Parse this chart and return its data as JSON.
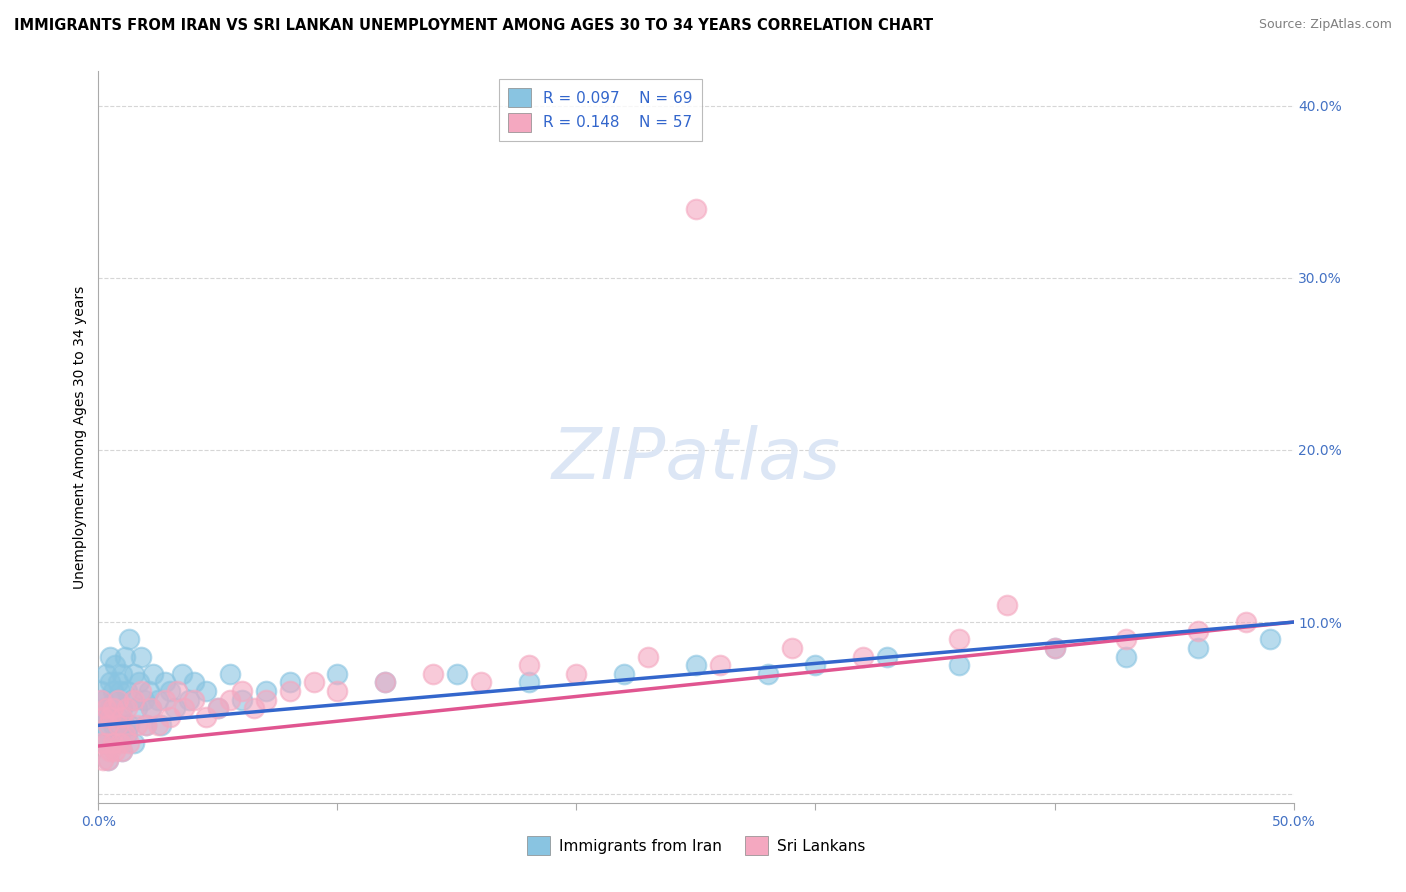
{
  "title": "IMMIGRANTS FROM IRAN VS SRI LANKAN UNEMPLOYMENT AMONG AGES 30 TO 34 YEARS CORRELATION CHART",
  "source": "Source: ZipAtlas.com",
  "ylabel": "Unemployment Among Ages 30 to 34 years",
  "legend1_label": "Immigrants from Iran",
  "legend2_label": "Sri Lankans",
  "r1": 0.097,
  "n1": 69,
  "r2": 0.148,
  "n2": 57,
  "color1": "#89c4e1",
  "color2": "#f4a8c0",
  "trendline1_color": "#3366cc",
  "trendline2_color": "#e05590",
  "tick_color": "#4472c4",
  "background_color": "#ffffff",
  "grid_color": "#cccccc",
  "watermark_color": "#dce6f5",
  "title_fontsize": 10.5,
  "source_fontsize": 9,
  "axis_label_fontsize": 10,
  "legend_fontsize": 11,
  "watermark_fontsize": 52,
  "tick_fontsize": 10,
  "xlim": [
    0.0,
    0.5
  ],
  "ylim": [
    -0.005,
    0.42
  ],
  "iran_x": [
    0.001,
    0.001,
    0.002,
    0.002,
    0.003,
    0.003,
    0.003,
    0.004,
    0.004,
    0.005,
    0.005,
    0.005,
    0.006,
    0.006,
    0.007,
    0.007,
    0.007,
    0.008,
    0.008,
    0.009,
    0.009,
    0.01,
    0.01,
    0.01,
    0.011,
    0.011,
    0.012,
    0.012,
    0.013,
    0.013,
    0.014,
    0.015,
    0.015,
    0.016,
    0.017,
    0.018,
    0.019,
    0.02,
    0.021,
    0.022,
    0.023,
    0.025,
    0.026,
    0.028,
    0.03,
    0.032,
    0.035,
    0.038,
    0.04,
    0.045,
    0.05,
    0.055,
    0.06,
    0.07,
    0.08,
    0.1,
    0.12,
    0.15,
    0.18,
    0.22,
    0.25,
    0.28,
    0.3,
    0.33,
    0.36,
    0.4,
    0.43,
    0.46,
    0.49
  ],
  "iran_y": [
    0.04,
    0.06,
    0.035,
    0.055,
    0.03,
    0.05,
    0.07,
    0.02,
    0.045,
    0.05,
    0.065,
    0.08,
    0.04,
    0.06,
    0.03,
    0.055,
    0.075,
    0.045,
    0.065,
    0.035,
    0.06,
    0.025,
    0.05,
    0.07,
    0.04,
    0.08,
    0.035,
    0.06,
    0.04,
    0.09,
    0.055,
    0.03,
    0.07,
    0.05,
    0.065,
    0.08,
    0.055,
    0.04,
    0.06,
    0.05,
    0.07,
    0.055,
    0.04,
    0.065,
    0.06,
    0.05,
    0.07,
    0.055,
    0.065,
    0.06,
    0.05,
    0.07,
    0.055,
    0.06,
    0.065,
    0.07,
    0.065,
    0.07,
    0.065,
    0.07,
    0.075,
    0.07,
    0.075,
    0.08,
    0.075,
    0.085,
    0.08,
    0.085,
    0.09
  ],
  "sri_x": [
    0.001,
    0.001,
    0.002,
    0.002,
    0.003,
    0.003,
    0.004,
    0.004,
    0.005,
    0.005,
    0.006,
    0.006,
    0.007,
    0.008,
    0.008,
    0.009,
    0.01,
    0.01,
    0.011,
    0.012,
    0.013,
    0.015,
    0.016,
    0.018,
    0.02,
    0.022,
    0.025,
    0.028,
    0.03,
    0.033,
    0.036,
    0.04,
    0.045,
    0.05,
    0.055,
    0.06,
    0.065,
    0.07,
    0.08,
    0.09,
    0.1,
    0.12,
    0.14,
    0.16,
    0.18,
    0.2,
    0.23,
    0.26,
    0.29,
    0.32,
    0.36,
    0.4,
    0.43,
    0.46,
    0.48,
    0.25,
    0.38
  ],
  "sri_y": [
    0.03,
    0.055,
    0.02,
    0.045,
    0.03,
    0.05,
    0.02,
    0.04,
    0.025,
    0.045,
    0.03,
    0.05,
    0.025,
    0.04,
    0.055,
    0.03,
    0.025,
    0.045,
    0.035,
    0.05,
    0.03,
    0.055,
    0.04,
    0.06,
    0.04,
    0.05,
    0.04,
    0.055,
    0.045,
    0.06,
    0.05,
    0.055,
    0.045,
    0.05,
    0.055,
    0.06,
    0.05,
    0.055,
    0.06,
    0.065,
    0.06,
    0.065,
    0.07,
    0.065,
    0.075,
    0.07,
    0.08,
    0.075,
    0.085,
    0.08,
    0.09,
    0.085,
    0.09,
    0.095,
    0.1,
    0.34,
    0.11
  ]
}
